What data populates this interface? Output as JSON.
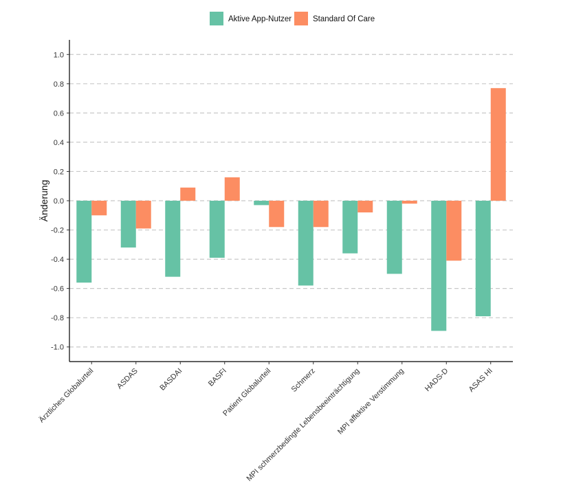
{
  "chart_data": {
    "type": "bar",
    "title": "",
    "xlabel": "",
    "ylabel": "Änderung",
    "ylim": [
      -1.1,
      1.1
    ],
    "yticks": [
      "-1.0",
      "-0.8",
      "-0.6",
      "-0.4",
      "-0.2",
      "0.0",
      "0.2",
      "0.4",
      "0.6",
      "0.8",
      "1.0"
    ],
    "grid": "horizontal dashed",
    "legend_position": "top",
    "categories": [
      "Ärztliches Globalurteil",
      "ASDAS",
      "BASDAI",
      "BASFI",
      "Patient Globalurteil",
      "Schmerz",
      "MPI schmerzbedingte Lebensbeeinträchtigung",
      "MPI affektive Verstimmung",
      "HADS-D",
      "ASAS HI"
    ],
    "series": [
      {
        "name": "Aktive App-Nutzer",
        "color": "#66c2a5",
        "values": [
          -0.56,
          -0.32,
          -0.52,
          -0.39,
          -0.03,
          -0.58,
          -0.36,
          -0.5,
          -0.89,
          -0.79
        ]
      },
      {
        "name": "Standard Of Care",
        "color": "#fc8d62",
        "values": [
          -0.1,
          -0.19,
          0.09,
          0.16,
          -0.18,
          -0.18,
          -0.08,
          -0.02,
          -0.41,
          0.77
        ]
      }
    ]
  }
}
